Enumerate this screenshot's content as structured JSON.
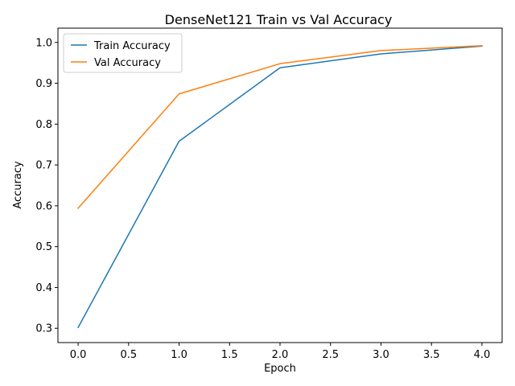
{
  "chart_data": {
    "type": "line",
    "title": "DenseNet121 Train vs Val Accuracy",
    "xlabel": "Epoch",
    "ylabel": "Accuracy",
    "x": [
      0,
      1,
      2,
      3,
      4
    ],
    "xlim": [
      -0.2,
      4.2
    ],
    "ylim": [
      0.265,
      1.035
    ],
    "xticks": [
      0.0,
      0.5,
      1.0,
      1.5,
      2.0,
      2.5,
      3.0,
      3.5,
      4.0
    ],
    "xtick_labels": [
      "0.0",
      "0.5",
      "1.0",
      "1.5",
      "2.0",
      "2.5",
      "3.0",
      "3.5",
      "4.0"
    ],
    "yticks": [
      0.3,
      0.4,
      0.5,
      0.6,
      0.7,
      0.8,
      0.9,
      1.0
    ],
    "ytick_labels": [
      "0.3",
      "0.4",
      "0.5",
      "0.6",
      "0.7",
      "0.8",
      "0.9",
      "1.0"
    ],
    "grid": false,
    "legend_position": "top-left",
    "series": [
      {
        "name": "Train Accuracy",
        "values": [
          0.302,
          0.758,
          0.938,
          0.972,
          0.991
        ],
        "color": "#1f77b4"
      },
      {
        "name": "Val Accuracy",
        "values": [
          0.594,
          0.874,
          0.948,
          0.98,
          0.992
        ],
        "color": "#ff7f0e"
      }
    ]
  }
}
